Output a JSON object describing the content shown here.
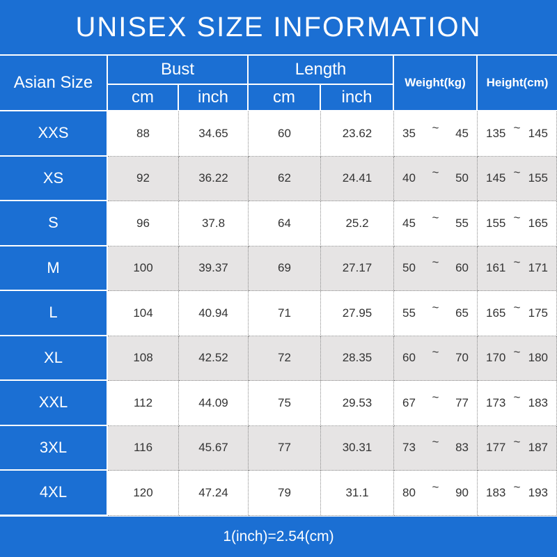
{
  "title": "UNISEX SIZE INFORMATION",
  "header": {
    "size": "Asian Size",
    "bust": "Bust",
    "length": "Length",
    "weight": "Weight(kg)",
    "height": "Height(cm)",
    "units": [
      "cm",
      "inch",
      "cm",
      "inch"
    ]
  },
  "rows": [
    {
      "size": "XXS",
      "bust_cm": "88",
      "bust_inch": "34.65",
      "length_cm": "60",
      "length_inch": "23.62",
      "weight": [
        "35",
        "~",
        "45"
      ],
      "height": [
        "135",
        "~",
        "145"
      ]
    },
    {
      "size": "XS",
      "bust_cm": "92",
      "bust_inch": "36.22",
      "length_cm": "62",
      "length_inch": "24.41",
      "weight": [
        "40",
        "~",
        "50"
      ],
      "height": [
        "145",
        "~",
        "155"
      ]
    },
    {
      "size": "S",
      "bust_cm": "96",
      "bust_inch": "37.8",
      "length_cm": "64",
      "length_inch": "25.2",
      "weight": [
        "45",
        "~",
        "55"
      ],
      "height": [
        "155",
        "~",
        "165"
      ]
    },
    {
      "size": "M",
      "bust_cm": "100",
      "bust_inch": "39.37",
      "length_cm": "69",
      "length_inch": "27.17",
      "weight": [
        "50",
        "~",
        "60"
      ],
      "height": [
        "161",
        "~",
        "171"
      ]
    },
    {
      "size": "L",
      "bust_cm": "104",
      "bust_inch": "40.94",
      "length_cm": "71",
      "length_inch": "27.95",
      "weight": [
        "55",
        "~",
        "65"
      ],
      "height": [
        "165",
        "~",
        "175"
      ]
    },
    {
      "size": "XL",
      "bust_cm": "108",
      "bust_inch": "42.52",
      "length_cm": "72",
      "length_inch": "28.35",
      "weight": [
        "60",
        "~",
        "70"
      ],
      "height": [
        "170",
        "~",
        "180"
      ]
    },
    {
      "size": "XXL",
      "bust_cm": "112",
      "bust_inch": "44.09",
      "length_cm": "75",
      "length_inch": "29.53",
      "weight": [
        "67",
        "~",
        "77"
      ],
      "height": [
        "173",
        "~",
        "183"
      ]
    },
    {
      "size": "3XL",
      "bust_cm": "116",
      "bust_inch": "45.67",
      "length_cm": "77",
      "length_inch": "30.31",
      "weight": [
        "73",
        "~",
        "83"
      ],
      "height": [
        "177",
        "~",
        "187"
      ]
    },
    {
      "size": "4XL",
      "bust_cm": "120",
      "bust_inch": "47.24",
      "length_cm": "79",
      "length_inch": "31.1",
      "weight": [
        "80",
        "~",
        "90"
      ],
      "height": [
        "183",
        "~",
        "193"
      ]
    }
  ],
  "footer": "1(inch)=2.54(cm)"
}
